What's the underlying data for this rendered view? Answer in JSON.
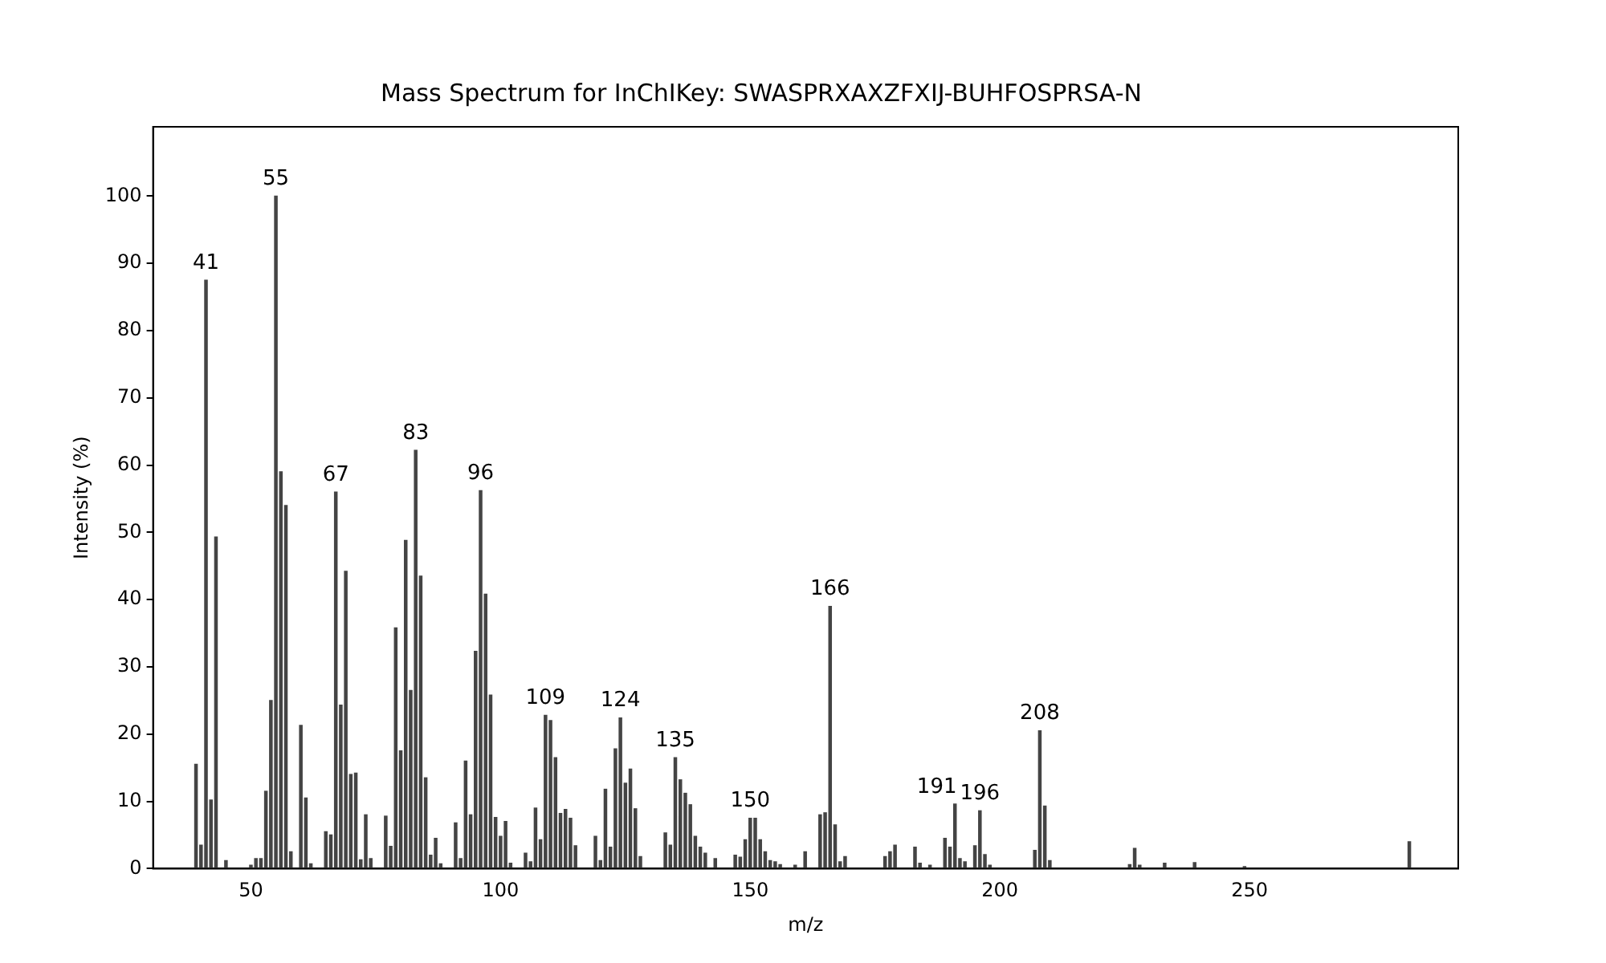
{
  "chart_data": {
    "type": "bar",
    "title": "Mass Spectrum for InChIKey: SWASPRXAXZFXIJ-BUHFOSPRSA-N",
    "xlabel": "m/z",
    "ylabel": "Intensity (%)",
    "x": [
      39,
      40,
      41,
      42,
      43,
      45,
      50,
      51,
      52,
      53,
      54,
      55,
      56,
      57,
      58,
      60,
      61,
      62,
      65,
      66,
      67,
      68,
      69,
      70,
      71,
      72,
      73,
      74,
      77,
      78,
      79,
      80,
      81,
      82,
      83,
      84,
      85,
      86,
      87,
      88,
      91,
      92,
      93,
      94,
      95,
      96,
      97,
      98,
      99,
      100,
      101,
      102,
      105,
      106,
      107,
      108,
      109,
      110,
      111,
      112,
      113,
      114,
      115,
      119,
      120,
      121,
      122,
      123,
      124,
      125,
      126,
      127,
      128,
      133,
      134,
      135,
      136,
      137,
      138,
      139,
      140,
      141,
      143,
      147,
      148,
      149,
      150,
      151,
      152,
      153,
      154,
      155,
      156,
      159,
      161,
      164,
      165,
      166,
      167,
      168,
      169,
      177,
      178,
      179,
      183,
      184,
      186,
      189,
      190,
      191,
      192,
      193,
      195,
      196,
      197,
      198,
      207,
      208,
      209,
      210,
      226,
      227,
      228,
      233,
      239,
      249,
      282
    ],
    "values": [
      15.5,
      3.5,
      87.5,
      10.2,
      49.3,
      1.2,
      0.5,
      1.5,
      1.5,
      11.5,
      25,
      100,
      59,
      54,
      2.5,
      21.3,
      10.5,
      0.7,
      5.5,
      5,
      56,
      24.3,
      44.2,
      14,
      14.2,
      1.3,
      8,
      1.5,
      7.8,
      3.3,
      35.8,
      17.5,
      48.8,
      26.5,
      62.2,
      43.5,
      13.5,
      2,
      4.5,
      0.7,
      6.8,
      1.5,
      16,
      8,
      32.3,
      56.2,
      40.8,
      25.8,
      7.6,
      4.8,
      7,
      0.8,
      2.3,
      1,
      9,
      4.3,
      22.8,
      22,
      16.5,
      8.2,
      8.8,
      7.5,
      3.4,
      4.8,
      1.2,
      11.8,
      3.2,
      17.8,
      22.4,
      12.7,
      14.8,
      8.9,
      1.8,
      5.3,
      3.5,
      16.5,
      13.2,
      11.2,
      9.5,
      4.8,
      3.2,
      2.3,
      1.5,
      2,
      1.7,
      4.3,
      7.5,
      7.5,
      4.3,
      2.5,
      1.2,
      1,
      0.6,
      0.5,
      2.5,
      8,
      8.3,
      39,
      6.5,
      1,
      1.8,
      1.8,
      2.5,
      3.5,
      3.2,
      0.8,
      0.5,
      4.5,
      3.2,
      9.6,
      1.5,
      1,
      3.4,
      8.6,
      2.1,
      0.5,
      2.7,
      20.5,
      9.3,
      1.2,
      0.6,
      3,
      0.5,
      0.8,
      0.9,
      0.3,
      4
    ],
    "annotations": [
      {
        "text": "41",
        "x": 41,
        "y": 87.5
      },
      {
        "text": "55",
        "x": 55,
        "y": 100
      },
      {
        "text": "67",
        "x": 67,
        "y": 56
      },
      {
        "text": "83",
        "x": 83,
        "y": 62.2
      },
      {
        "text": "96",
        "x": 96,
        "y": 56.2
      },
      {
        "text": "109",
        "x": 109,
        "y": 22.8
      },
      {
        "text": "124",
        "x": 124,
        "y": 22.4
      },
      {
        "text": "135",
        "x": 135,
        "y": 16.5
      },
      {
        "text": "150",
        "x": 150,
        "y": 7.5
      },
      {
        "text": "166",
        "x": 166,
        "y": 39
      },
      {
        "text": "191",
        "x": 191,
        "y": 9.6
      },
      {
        "text": "196",
        "x": 196,
        "y": 8.6
      },
      {
        "text": "208",
        "x": 208,
        "y": 20.5
      }
    ],
    "color": "#444444",
    "xlim": [
      30.4,
      291.8
    ],
    "xticks": [
      50,
      100,
      150,
      200,
      250
    ],
    "ylim": [
      0,
      110.3
    ],
    "yticks": [
      0,
      10,
      20,
      30,
      40,
      50,
      60,
      70,
      80,
      90,
      100
    ],
    "grid": false,
    "legend": false
  }
}
